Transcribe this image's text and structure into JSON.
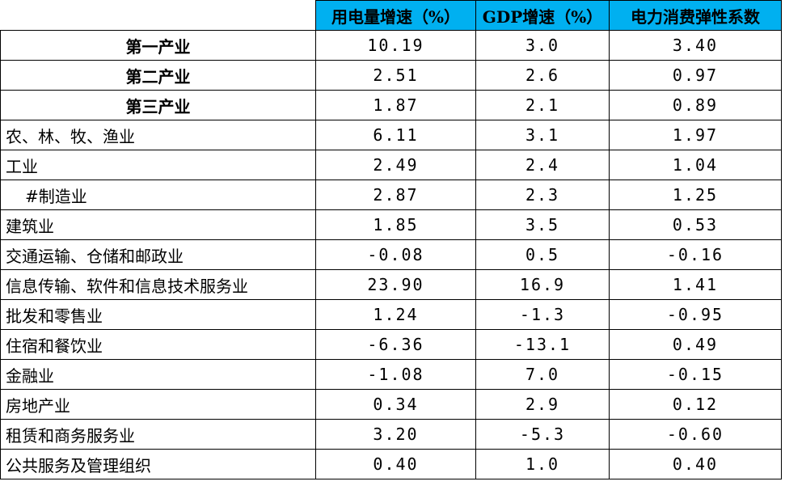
{
  "table": {
    "headers": [
      "用电量增速（%）",
      "GDP增速（%）",
      "电力消费弹性系数"
    ],
    "rows": [
      [
        "第一产业",
        "10.19",
        "3.0",
        "3.40"
      ],
      [
        "第二产业",
        "2.51",
        "2.6",
        "0.97"
      ],
      [
        "第三产业",
        "1.87",
        "2.1",
        "0.89"
      ],
      [
        "农、林、牧、渔业",
        "6.11",
        "3.1",
        "1.97"
      ],
      [
        "工业",
        "2.49",
        "2.4",
        "1.04"
      ],
      [
        "#制造业",
        "2.87",
        "2.3",
        "1.25"
      ],
      [
        "建筑业",
        "1.85",
        "3.5",
        "0.53"
      ],
      [
        "交通运输、仓储和邮政业",
        "-0.08",
        "0.5",
        "-0.16"
      ],
      [
        "信息传输、软件和信息技术服务业",
        "23.90",
        "16.9",
        "1.41"
      ],
      [
        "批发和零售业",
        "1.24",
        "-1.3",
        "-0.95"
      ],
      [
        "住宿和餐饮业",
        "-6.36",
        "-13.1",
        "0.49"
      ],
      [
        "金融业",
        "-1.08",
        "7.0",
        "-0.15"
      ],
      [
        "房地产业",
        "0.34",
        "2.9",
        "0.12"
      ],
      [
        "租赁和商务服务业",
        "3.20",
        "-5.3",
        "-0.60"
      ],
      [
        "公共服务及管理组织",
        "0.40",
        "1.0",
        "0.40"
      ]
    ]
  }
}
